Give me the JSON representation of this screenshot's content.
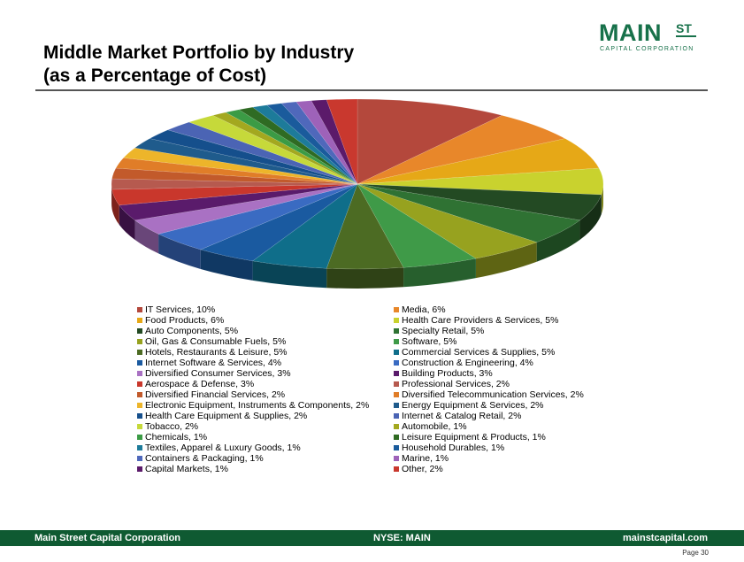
{
  "header": {
    "title_line1": "Middle Market Portfolio by Industry",
    "title_line2": "(as a Percentage of Cost)"
  },
  "logo": {
    "main": "MAIN",
    "superscript": "ST",
    "subtitle": "CAPITAL CORPORATION",
    "color": "#17714a"
  },
  "footer": {
    "left": "Main Street Capital Corporation",
    "center": "NYSE: MAIN",
    "right": "mainstcapital.com",
    "page": "Page   30",
    "color": "#0f5a32"
  },
  "chart_data": {
    "type": "pie",
    "title": "",
    "legend_placement": "bottom",
    "series": [
      {
        "label": "IT Services, 10%",
        "value": 10,
        "color": "#b4483c"
      },
      {
        "label": "Media, 6%",
        "value": 6,
        "color": "#e8872a"
      },
      {
        "label": "Food Products, 6%",
        "value": 6,
        "color": "#e6a817"
      },
      {
        "label": "Health Care Providers & Services, 5%",
        "value": 5,
        "color": "#c9d22e"
      },
      {
        "label": "Auto Components, 5%",
        "value": 5,
        "color": "#234a23"
      },
      {
        "label": "Specialty Retail, 5%",
        "value": 5,
        "color": "#2f7233"
      },
      {
        "label": "Oil, Gas & Consumable Fuels, 5%",
        "value": 5,
        "color": "#97a21f"
      },
      {
        "label": "Software, 5%",
        "value": 5,
        "color": "#3f9a48"
      },
      {
        "label": "Hotels, Restaurants & Leisure, 5%",
        "value": 5,
        "color": "#4c6b23"
      },
      {
        "label": "Commercial Services & Supplies, 5%",
        "value": 5,
        "color": "#0f6e8a"
      },
      {
        "label": "Internet Software & Services, 4%",
        "value": 4,
        "color": "#1a5aa0"
      },
      {
        "label": "Construction & Engineering, 4%",
        "value": 4,
        "color": "#3a6bc2"
      },
      {
        "label": "Diversified Consumer Services, 3%",
        "value": 3,
        "color": "#a971c3"
      },
      {
        "label": "Building Products, 3%",
        "value": 3,
        "color": "#5a1b6b"
      },
      {
        "label": "Aerospace & Defense, 3%",
        "value": 3,
        "color": "#c9372c"
      },
      {
        "label": "Professional Services, 2%",
        "value": 2,
        "color": "#b65a4f"
      },
      {
        "label": "Diversified Financial Services, 2%",
        "value": 2,
        "color": "#c25a2b"
      },
      {
        "label": "Diversified Telecommunication Services, 2%",
        "value": 2,
        "color": "#e07d28"
      },
      {
        "label": "Electronic Equipment, Instruments & Components, 2%",
        "value": 2,
        "color": "#edb52a"
      },
      {
        "label": "Energy Equipment & Services, 2%",
        "value": 2,
        "color": "#1f5b8c"
      },
      {
        "label": "Health Care Equipment & Supplies, 2%",
        "value": 2,
        "color": "#154f8c"
      },
      {
        "label": "Internet & Catalog Retail, 2%",
        "value": 2,
        "color": "#4b64b4"
      },
      {
        "label": "Tobacco, 2%",
        "value": 2,
        "color": "#c6d93a"
      },
      {
        "label": "Automobile, 1%",
        "value": 1,
        "color": "#a3a81f"
      },
      {
        "label": "Chemicals, 1%",
        "value": 1,
        "color": "#3b9b45"
      },
      {
        "label": "Leisure Equipment & Products, 1%",
        "value": 1,
        "color": "#2f6b23"
      },
      {
        "label": "Textiles, Apparel & Luxury Goods, 1%",
        "value": 1,
        "color": "#1d7b9a"
      },
      {
        "label": "Household Durables, 1%",
        "value": 1,
        "color": "#1a5b9c"
      },
      {
        "label": "Containers & Packaging, 1%",
        "value": 1,
        "color": "#4f68bb"
      },
      {
        "label": "Marine, 1%",
        "value": 1,
        "color": "#9e62b9"
      },
      {
        "label": "Capital Markets, 1%",
        "value": 1,
        "color": "#5b1a6a"
      },
      {
        "label": "Other, 2%",
        "value": 2,
        "color": "#c9382e"
      }
    ]
  }
}
